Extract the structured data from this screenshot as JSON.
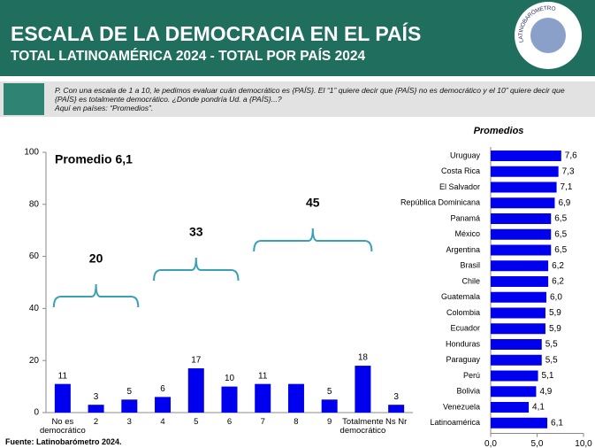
{
  "header": {
    "title": "ESCALA DE LA DEMOCRACIA EN EL PAÍS",
    "subtitle": "TOTAL LATINOAMÉRICA 2024 - TOTAL POR PAÍS 2024",
    "logo_text": "LATINOBARÓMETRO"
  },
  "question": [
    "P. Con una escala de 1 a 10, le pedimos evaluar cuán democrático es {PAÍS}. El “1” quiere decir que {PAÍS} no es democrático y el 10” quiere decir que {PAÍS} es totalmente democrático. ¿Donde pondría Ud. a {PAÍS}...?",
    "Aquí en países: “Promedios”."
  ],
  "source": "Fuente: Latinobarómetro 2024.",
  "chart_data": [
    {
      "type": "bar",
      "annotation": "Promedio 6,1",
      "categories": [
        "No es democrático",
        "2",
        "3",
        "4",
        "5",
        "6",
        "7",
        "8",
        "9",
        "Totalmente democrático",
        "Ns Nr"
      ],
      "values": [
        11,
        3,
        5,
        6,
        17,
        10,
        11,
        11,
        5,
        18,
        3
      ],
      "value_labels": [
        "11",
        "3",
        "5",
        "6",
        "17",
        "10",
        "11",
        null,
        "5",
        "18",
        "3"
      ],
      "color": "#0000ee",
      "ylim": [
        0,
        100
      ],
      "yticks": [
        0,
        20,
        40,
        60,
        80,
        100
      ],
      "groups": [
        {
          "label": "20",
          "span": [
            0,
            2
          ]
        },
        {
          "label": "33",
          "span": [
            3,
            5
          ]
        },
        {
          "label": "45",
          "span": [
            6,
            9
          ]
        }
      ]
    },
    {
      "type": "hbar",
      "title": "Promedios",
      "categories": [
        "Uruguay",
        "Costa Rica",
        "El Salvador",
        "República Dominicana",
        "Panamá",
        "México",
        "Argentina",
        "Brasil",
        "Chile",
        "Guatemala",
        "Colombia",
        "Ecuador",
        "Honduras",
        "Paraguay",
        "Perú",
        "Bolivia",
        "Venezuela",
        "Latinoamérica"
      ],
      "values": [
        7.6,
        7.3,
        7.1,
        6.9,
        6.5,
        6.5,
        6.5,
        6.2,
        6.2,
        6.0,
        5.9,
        5.9,
        5.5,
        5.5,
        5.1,
        4.9,
        4.1,
        6.1
      ],
      "value_labels": [
        "7,6",
        "7,3",
        "7,1",
        "6,9",
        "6,5",
        "6,5",
        "6,5",
        "6,2",
        "6,2",
        "6,0",
        "5,9",
        "5,9",
        "5,5",
        "5,5",
        "5,1",
        "4,9",
        "4,1",
        "6,1"
      ],
      "color": "#0000ee",
      "xlim": [
        0,
        10
      ],
      "xticks": [
        {
          "value": 0,
          "label": "0,0"
        },
        {
          "value": 5,
          "label": "5,0"
        },
        {
          "value": 10,
          "label": "10,0"
        }
      ]
    }
  ]
}
